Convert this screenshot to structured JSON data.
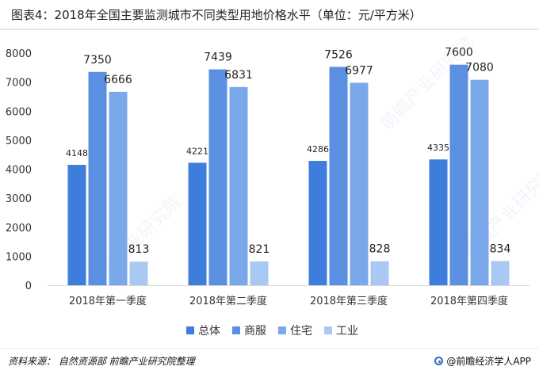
{
  "title": "图表4：2018年全国主要监测城市不同类型用地价格水平（单位：元/平方米）",
  "watermark": "前瞻产业研究院",
  "source": "资料来源： 自然资源部 前瞻产业研究院整理",
  "brand": "@前瞻经济学人APP",
  "colors": {
    "background": "#ffffff",
    "text": "#333333",
    "axis": "#d9d9d9",
    "series": [
      "#3f7ddc",
      "#5b8fe1",
      "#7aa8ea",
      "#a9c8f3"
    ]
  },
  "chart_data": {
    "type": "bar",
    "categories": [
      "2018年第一季度",
      "2018年第二季度",
      "2018年第三季度",
      "2018年第四季度"
    ],
    "series": [
      {
        "name": "总体",
        "values": [
          4148,
          4221,
          4286,
          4335
        ]
      },
      {
        "name": "商服",
        "values": [
          7350,
          7439,
          7526,
          7600
        ]
      },
      {
        "name": "住宅",
        "values": [
          6666,
          6831,
          6977,
          7080
        ]
      },
      {
        "name": "工业",
        "values": [
          813,
          821,
          828,
          834
        ]
      }
    ],
    "ylim": [
      0,
      8000
    ],
    "yticks": [
      0,
      1000,
      2000,
      3000,
      4000,
      5000,
      6000,
      7000,
      8000
    ],
    "grid": false,
    "legend": "bottom"
  }
}
